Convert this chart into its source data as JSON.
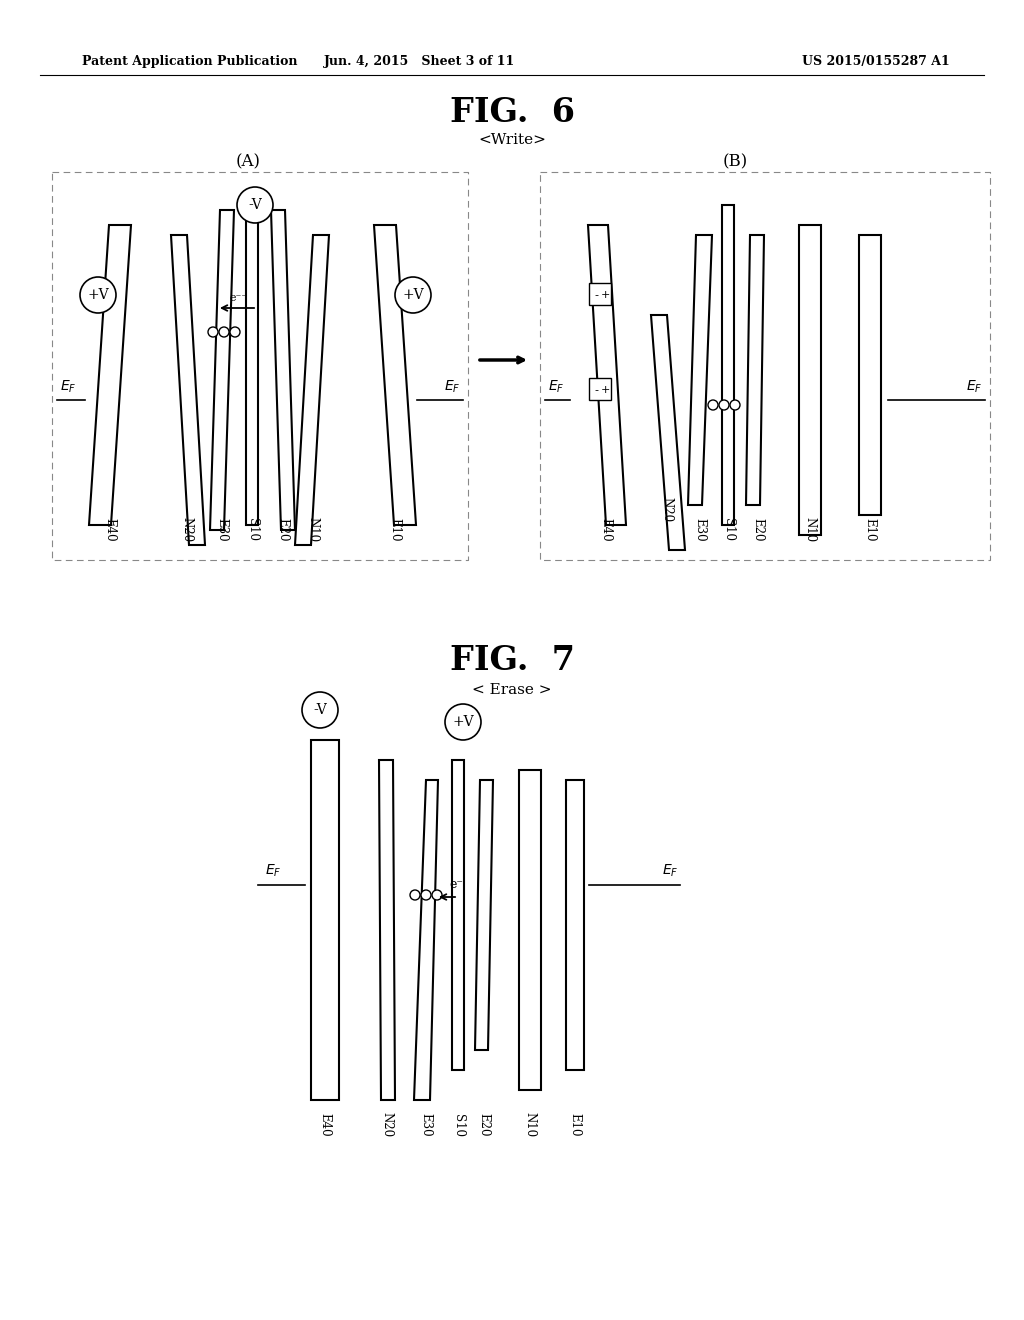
{
  "header_left": "Patent Application Publication",
  "header_mid": "Jun. 4, 2015   Sheet 3 of 11",
  "header_right": "US 2015/0155287 A1",
  "fig6_title": "FIG.  6",
  "fig6_subtitle": "<Write>",
  "fig6_A_label": "(A)",
  "fig6_B_label": "(B)",
  "fig7_title": "FIG.  7",
  "fig7_subtitle": "< Erase >",
  "bg_color": "#ffffff",
  "line_color": "#000000"
}
